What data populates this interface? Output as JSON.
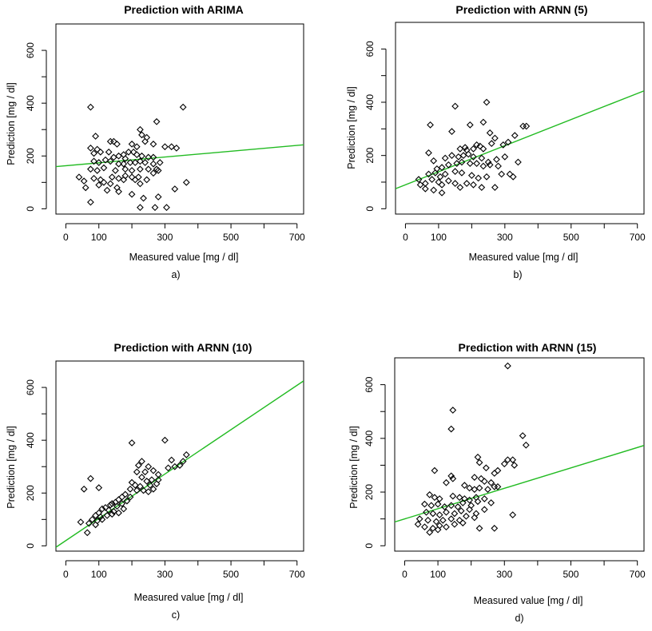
{
  "figure": {
    "background": "#ffffff",
    "fit_color": "#22bb22",
    "point_color": "#000000"
  },
  "chart_data": [
    {
      "type": "scatter",
      "title": "Prediction with ARIMA",
      "xlabel": "Measured value [mg / dl]",
      "ylabel": "Prediction [mg / dl]",
      "caption": "a)",
      "xlim": [
        -30,
        720
      ],
      "ylim": [
        -20,
        700
      ],
      "xticks": [
        0,
        100,
        300,
        500,
        700
      ],
      "yticks": [
        0,
        200,
        400,
        600
      ],
      "fit_line": {
        "intercept": 163,
        "slope": 0.11
      },
      "points": [
        [
          75,
          385
        ],
        [
          355,
          385
        ],
        [
          275,
          330
        ],
        [
          90,
          275
        ],
        [
          135,
          255
        ],
        [
          145,
          255
        ],
        [
          155,
          245
        ],
        [
          225,
          300
        ],
        [
          230,
          280
        ],
        [
          245,
          270
        ],
        [
          240,
          255
        ],
        [
          200,
          245
        ],
        [
          215,
          235
        ],
        [
          265,
          245
        ],
        [
          300,
          235
        ],
        [
          320,
          235
        ],
        [
          335,
          230
        ],
        [
          75,
          230
        ],
        [
          95,
          225
        ],
        [
          105,
          215
        ],
        [
          85,
          210
        ],
        [
          130,
          215
        ],
        [
          145,
          195
        ],
        [
          160,
          200
        ],
        [
          175,
          205
        ],
        [
          180,
          190
        ],
        [
          190,
          215
        ],
        [
          205,
          215
        ],
        [
          215,
          205
        ],
        [
          230,
          200
        ],
        [
          250,
          195
        ],
        [
          265,
          195
        ],
        [
          85,
          180
        ],
        [
          100,
          175
        ],
        [
          120,
          185
        ],
        [
          135,
          180
        ],
        [
          160,
          170
        ],
        [
          175,
          170
        ],
        [
          195,
          175
        ],
        [
          210,
          175
        ],
        [
          225,
          180
        ],
        [
          240,
          175
        ],
        [
          265,
          170
        ],
        [
          285,
          175
        ],
        [
          75,
          150
        ],
        [
          95,
          145
        ],
        [
          115,
          155
        ],
        [
          150,
          145
        ],
        [
          180,
          150
        ],
        [
          200,
          145
        ],
        [
          225,
          150
        ],
        [
          250,
          150
        ],
        [
          275,
          150
        ],
        [
          40,
          120
        ],
        [
          55,
          105
        ],
        [
          85,
          115
        ],
        [
          105,
          110
        ],
        [
          140,
          120
        ],
        [
          160,
          115
        ],
        [
          180,
          125
        ],
        [
          200,
          120
        ],
        [
          220,
          120
        ],
        [
          245,
          110
        ],
        [
          265,
          135
        ],
        [
          280,
          145
        ],
        [
          60,
          80
        ],
        [
          100,
          90
        ],
        [
          115,
          100
        ],
        [
          135,
          95
        ],
        [
          155,
          80
        ],
        [
          175,
          110
        ],
        [
          210,
          110
        ],
        [
          225,
          95
        ],
        [
          330,
          75
        ],
        [
          365,
          100
        ],
        [
          75,
          25
        ],
        [
          125,
          70
        ],
        [
          160,
          65
        ],
        [
          200,
          55
        ],
        [
          235,
          40
        ],
        [
          280,
          45
        ],
        [
          225,
          5
        ],
        [
          270,
          5
        ],
        [
          305,
          5
        ]
      ]
    },
    {
      "type": "scatter",
      "title": "Prediction with ARNN (5)",
      "xlabel": "Measured value [mg / dl]",
      "ylabel": "Prediction [mg / dl]",
      "caption": "b)",
      "xlim": [
        -30,
        720
      ],
      "ylim": [
        -20,
        700
      ],
      "xticks": [
        0,
        100,
        300,
        500,
        700
      ],
      "yticks": [
        0,
        200,
        400,
        600
      ],
      "fit_line": {
        "intercept": 90,
        "slope": 0.49
      },
      "points": [
        [
          245,
          400
        ],
        [
          150,
          385
        ],
        [
          75,
          315
        ],
        [
          195,
          315
        ],
        [
          235,
          325
        ],
        [
          355,
          310
        ],
        [
          365,
          310
        ],
        [
          140,
          290
        ],
        [
          255,
          285
        ],
        [
          270,
          265
        ],
        [
          70,
          210
        ],
        [
          165,
          225
        ],
        [
          180,
          230
        ],
        [
          185,
          220
        ],
        [
          205,
          225
        ],
        [
          215,
          240
        ],
        [
          225,
          235
        ],
        [
          235,
          225
        ],
        [
          260,
          245
        ],
        [
          295,
          240
        ],
        [
          310,
          250
        ],
        [
          330,
          275
        ],
        [
          85,
          180
        ],
        [
          120,
          190
        ],
        [
          140,
          200
        ],
        [
          160,
          195
        ],
        [
          175,
          200
        ],
        [
          190,
          205
        ],
        [
          205,
          195
        ],
        [
          230,
          190
        ],
        [
          250,
          175
        ],
        [
          275,
          185
        ],
        [
          300,
          195
        ],
        [
          340,
          175
        ],
        [
          95,
          150
        ],
        [
          110,
          155
        ],
        [
          130,
          165
        ],
        [
          155,
          170
        ],
        [
          170,
          175
        ],
        [
          195,
          170
        ],
        [
          215,
          170
        ],
        [
          235,
          160
        ],
        [
          255,
          165
        ],
        [
          280,
          160
        ],
        [
          70,
          130
        ],
        [
          90,
          135
        ],
        [
          105,
          120
        ],
        [
          120,
          130
        ],
        [
          150,
          140
        ],
        [
          170,
          135
        ],
        [
          200,
          125
        ],
        [
          220,
          115
        ],
        [
          245,
          120
        ],
        [
          290,
          130
        ],
        [
          315,
          130
        ],
        [
          325,
          120
        ],
        [
          40,
          110
        ],
        [
          60,
          95
        ],
        [
          80,
          110
        ],
        [
          100,
          100
        ],
        [
          110,
          90
        ],
        [
          130,
          105
        ],
        [
          150,
          95
        ],
        [
          165,
          80
        ],
        [
          185,
          95
        ],
        [
          205,
          90
        ],
        [
          230,
          80
        ],
        [
          270,
          80
        ],
        [
          45,
          90
        ],
        [
          60,
          75
        ],
        [
          85,
          70
        ],
        [
          110,
          60
        ]
      ]
    },
    {
      "type": "scatter",
      "title": "Prediction with ARNN (10)",
      "xlabel": "Measured value [mg / dl]",
      "ylabel": "Prediction [mg / dl]",
      "caption": "c)",
      "xlim": [
        -30,
        720
      ],
      "ylim": [
        -20,
        700
      ],
      "xticks": [
        0,
        100,
        300,
        500,
        700
      ],
      "yticks": [
        0,
        200,
        400,
        600
      ],
      "fit_line": {
        "intercept": 20,
        "slope": 0.84
      },
      "points": [
        [
          300,
          400
        ],
        [
          200,
          390
        ],
        [
          75,
          255
        ],
        [
          55,
          215
        ],
        [
          100,
          220
        ],
        [
          365,
          345
        ],
        [
          355,
          320
        ],
        [
          320,
          325
        ],
        [
          345,
          305
        ],
        [
          330,
          300
        ],
        [
          310,
          295
        ],
        [
          230,
          320
        ],
        [
          220,
          305
        ],
        [
          250,
          300
        ],
        [
          265,
          285
        ],
        [
          280,
          270
        ],
        [
          240,
          280
        ],
        [
          215,
          280
        ],
        [
          230,
          260
        ],
        [
          245,
          245
        ],
        [
          260,
          250
        ],
        [
          280,
          250
        ],
        [
          200,
          240
        ],
        [
          210,
          230
        ],
        [
          225,
          225
        ],
        [
          255,
          230
        ],
        [
          275,
          235
        ],
        [
          195,
          215
        ],
        [
          215,
          210
        ],
        [
          235,
          210
        ],
        [
          250,
          205
        ],
        [
          265,
          215
        ],
        [
          180,
          195
        ],
        [
          170,
          185
        ],
        [
          160,
          175
        ],
        [
          150,
          165
        ],
        [
          140,
          160
        ],
        [
          135,
          155
        ],
        [
          155,
          150
        ],
        [
          170,
          160
        ],
        [
          185,
          170
        ],
        [
          195,
          185
        ],
        [
          120,
          145
        ],
        [
          110,
          140
        ],
        [
          130,
          135
        ],
        [
          145,
          130
        ],
        [
          160,
          125
        ],
        [
          175,
          140
        ],
        [
          100,
          125
        ],
        [
          90,
          115
        ],
        [
          105,
          110
        ],
        [
          125,
          115
        ],
        [
          140,
          120
        ],
        [
          80,
          100
        ],
        [
          95,
          95
        ],
        [
          110,
          100
        ],
        [
          70,
          85
        ],
        [
          90,
          80
        ],
        [
          45,
          90
        ],
        [
          65,
          50
        ]
      ]
    },
    {
      "type": "scatter",
      "title": "Prediction with ARNN (15)",
      "xlabel": "Measured value [mg / dl]",
      "ylabel": "Prediction [mg / dl]",
      "caption": "d)",
      "xlim": [
        -30,
        720
      ],
      "ylim": [
        -20,
        700
      ],
      "xticks": [
        0,
        100,
        300,
        500,
        700
      ],
      "yticks": [
        0,
        200,
        400,
        600
      ],
      "fit_line": {
        "intercept": 100,
        "slope": 0.38
      },
      "points": [
        [
          310,
          670
        ],
        [
          145,
          505
        ],
        [
          140,
          435
        ],
        [
          355,
          410
        ],
        [
          365,
          375
        ],
        [
          140,
          260
        ],
        [
          145,
          250
        ],
        [
          220,
          330
        ],
        [
          225,
          310
        ],
        [
          310,
          320
        ],
        [
          325,
          320
        ],
        [
          330,
          300
        ],
        [
          300,
          305
        ],
        [
          280,
          280
        ],
        [
          270,
          270
        ],
        [
          245,
          290
        ],
        [
          90,
          280
        ],
        [
          125,
          235
        ],
        [
          210,
          255
        ],
        [
          230,
          250
        ],
        [
          240,
          240
        ],
        [
          260,
          235
        ],
        [
          270,
          220
        ],
        [
          180,
          225
        ],
        [
          195,
          215
        ],
        [
          210,
          210
        ],
        [
          225,
          215
        ],
        [
          250,
          210
        ],
        [
          280,
          220
        ],
        [
          75,
          190
        ],
        [
          90,
          180
        ],
        [
          105,
          175
        ],
        [
          145,
          185
        ],
        [
          165,
          180
        ],
        [
          180,
          175
        ],
        [
          195,
          170
        ],
        [
          215,
          180
        ],
        [
          240,
          175
        ],
        [
          60,
          155
        ],
        [
          80,
          150
        ],
        [
          100,
          155
        ],
        [
          120,
          145
        ],
        [
          140,
          150
        ],
        [
          160,
          145
        ],
        [
          175,
          160
        ],
        [
          200,
          150
        ],
        [
          220,
          165
        ],
        [
          260,
          160
        ],
        [
          65,
          125
        ],
        [
          85,
          120
        ],
        [
          105,
          115
        ],
        [
          125,
          125
        ],
        [
          150,
          120
        ],
        [
          170,
          130
        ],
        [
          195,
          135
        ],
        [
          215,
          120
        ],
        [
          240,
          135
        ],
        [
          325,
          115
        ],
        [
          45,
          100
        ],
        [
          70,
          95
        ],
        [
          95,
          90
        ],
        [
          115,
          95
        ],
        [
          140,
          100
        ],
        [
          165,
          95
        ],
        [
          185,
          110
        ],
        [
          210,
          105
        ],
        [
          40,
          80
        ],
        [
          60,
          70
        ],
        [
          85,
          65
        ],
        [
          105,
          75
        ],
        [
          125,
          70
        ],
        [
          150,
          80
        ],
        [
          175,
          85
        ],
        [
          75,
          50
        ],
        [
          100,
          60
        ],
        [
          225,
          65
        ],
        [
          270,
          65
        ]
      ]
    }
  ]
}
